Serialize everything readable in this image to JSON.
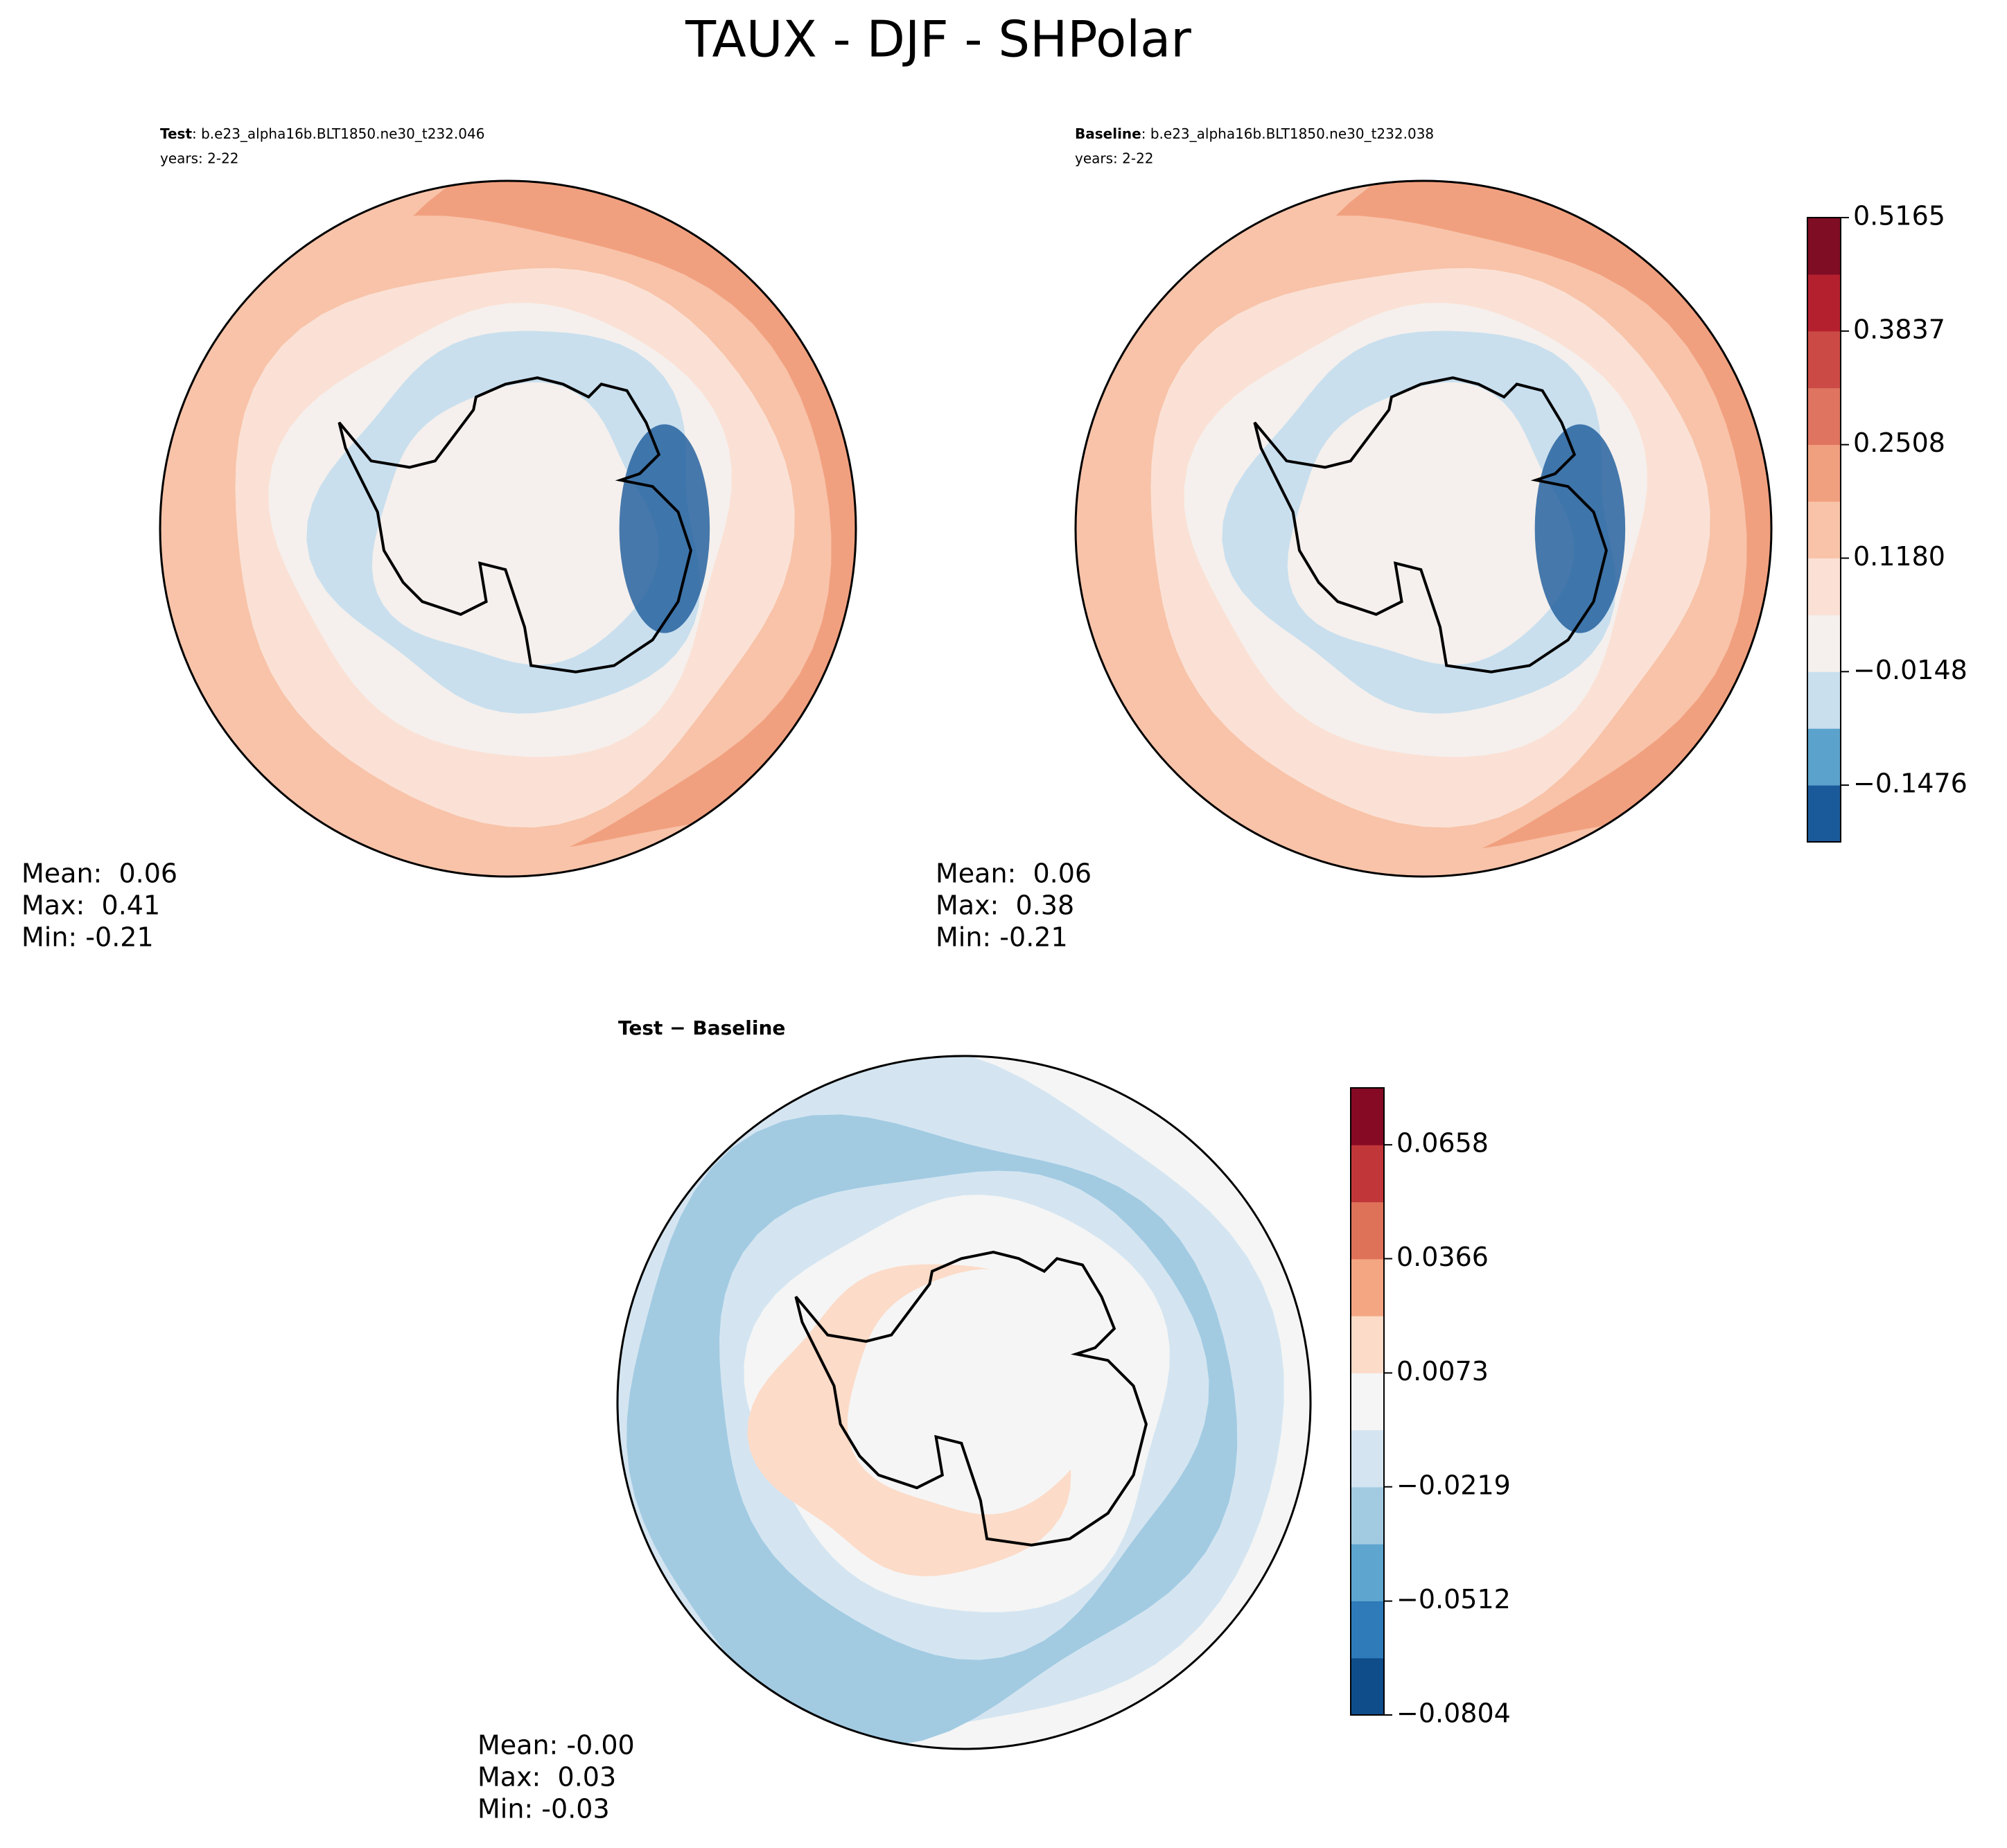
{
  "title": "TAUX - DJF - SHPolar",
  "chart_data": [
    {
      "type": "polar-contour",
      "label": "Test",
      "case": ": b.e23_alpha16b.BLT1850.ne30_t232.046",
      "years": "years: 2-22",
      "stats": [
        "Mean:  0.06",
        "Max:  0.41",
        "Min: -0.21"
      ]
    },
    {
      "type": "polar-contour",
      "label": "Baseline",
      "case": ": b.e23_alpha16b.BLT1850.ne30_t232.038",
      "years": "years: 2-22",
      "stats": [
        "Mean:  0.06",
        "Max:  0.38",
        "Min: -0.21"
      ],
      "colorbar": {
        "ylim": [
          -0.214,
          0.5165
        ],
        "yticks": [
          {
            "value": -0.1476,
            "label": "−0.1476"
          },
          {
            "value": -0.0148,
            "label": "−0.0148"
          },
          {
            "value": 0.118,
            "label": "0.1180"
          },
          0.2508,
          0.3837,
          0.5165
        ],
        "colors": [
          "#1b5a9a",
          "#5ba2cc",
          "#c9dfee",
          "#f5f0ed",
          "#fbe1d5",
          "#f8c3a9",
          "#f1a07f",
          "#df7460",
          "#cc4a45",
          "#b5202f",
          "#7f0d24"
        ]
      }
    },
    {
      "type": "polar-contour",
      "label": "Test − Baseline",
      "stats": [
        "Mean: -0.00",
        "Max:  0.03",
        "Min: -0.03"
      ],
      "colorbar": {
        "ylim": [
          -0.0804,
          0.0804
        ],
        "yticks": [
          {
            "value": -0.0804,
            "label": "−0.0804"
          },
          {
            "value": -0.0512,
            "label": "−0.0512"
          },
          {
            "value": -0.0219,
            "label": "−0.0219"
          },
          0.0073,
          0.0366,
          0.0658
        ],
        "colors": [
          "#0f4d8a",
          "#2f7ab8",
          "#5ea5cf",
          "#a2cbe2",
          "#d4e5f1",
          "#f5f5f5",
          "#fcdbc8",
          "#f4a683",
          "#de7259",
          "#c13639",
          "#870a24"
        ]
      }
    }
  ]
}
